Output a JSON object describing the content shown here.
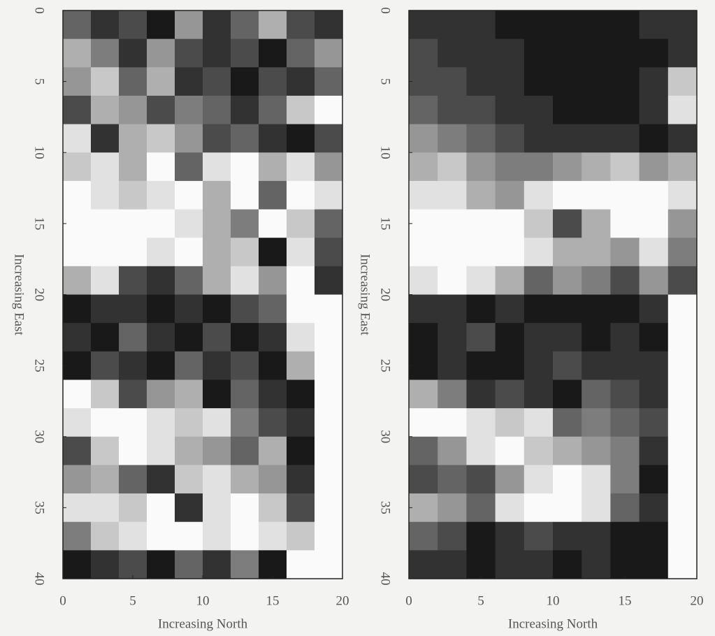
{
  "chart_data": [
    {
      "type": "heatmap",
      "xlabel": "Increasing North",
      "ylabel": "Increasing East",
      "xlim": [
        0,
        20
      ],
      "ylim": [
        0,
        40
      ],
      "xticks": [
        0,
        5,
        10,
        15,
        20
      ],
      "yticks": [
        0,
        5,
        10,
        15,
        20,
        25,
        30,
        35,
        40
      ],
      "y_inverted": true,
      "z": [
        [
          3,
          1,
          2,
          0,
          5,
          1,
          3,
          6,
          2,
          1
        ],
        [
          6,
          4,
          1,
          5,
          2,
          1,
          2,
          0,
          3,
          5
        ],
        [
          5,
          7,
          3,
          6,
          1,
          2,
          0,
          2,
          1,
          3
        ],
        [
          2,
          6,
          5,
          2,
          4,
          3,
          1,
          3,
          7,
          9
        ],
        [
          8,
          1,
          6,
          7,
          5,
          2,
          3,
          1,
          0,
          2
        ],
        [
          7,
          8,
          6,
          9,
          3,
          8,
          9,
          6,
          8,
          5
        ],
        [
          9,
          8,
          7,
          8,
          9,
          6,
          9,
          3,
          9,
          8
        ],
        [
          9,
          9,
          9,
          9,
          8,
          6,
          4,
          9,
          7,
          3
        ],
        [
          9,
          9,
          9,
          8,
          9,
          6,
          7,
          0,
          8,
          2
        ],
        [
          6,
          8,
          2,
          1,
          3,
          6,
          8,
          5,
          9,
          1
        ],
        [
          0,
          1,
          1,
          0,
          1,
          0,
          2,
          3,
          9,
          9
        ],
        [
          1,
          0,
          3,
          1,
          0,
          2,
          0,
          1,
          8,
          9
        ],
        [
          0,
          2,
          1,
          0,
          3,
          1,
          2,
          0,
          6,
          9
        ],
        [
          9,
          7,
          2,
          5,
          6,
          0,
          3,
          1,
          0,
          9
        ],
        [
          8,
          9,
          9,
          8,
          7,
          8,
          4,
          2,
          1,
          9
        ],
        [
          2,
          7,
          9,
          8,
          6,
          5,
          3,
          6,
          0,
          9
        ],
        [
          5,
          6,
          3,
          1,
          7,
          8,
          6,
          5,
          1,
          9
        ],
        [
          8,
          8,
          7,
          9,
          1,
          8,
          9,
          7,
          2,
          9
        ],
        [
          4,
          7,
          8,
          9,
          9,
          8,
          9,
          8,
          7,
          9
        ],
        [
          0,
          1,
          2,
          0,
          3,
          1,
          4,
          0,
          9,
          9
        ]
      ]
    },
    {
      "type": "heatmap",
      "xlabel": "Increasing North",
      "ylabel": "Increasing East",
      "xlim": [
        0,
        20
      ],
      "ylim": [
        0,
        40
      ],
      "xticks": [
        0,
        5,
        10,
        15,
        20
      ],
      "yticks": [
        0,
        5,
        10,
        15,
        20,
        25,
        30,
        35,
        40
      ],
      "y_inverted": true,
      "z": [
        [
          1,
          1,
          1,
          0,
          0,
          0,
          0,
          0,
          1,
          1
        ],
        [
          2,
          1,
          1,
          1,
          0,
          0,
          0,
          0,
          0,
          1
        ],
        [
          2,
          2,
          1,
          1,
          0,
          0,
          0,
          0,
          1,
          7
        ],
        [
          3,
          2,
          2,
          1,
          1,
          0,
          0,
          0,
          1,
          8
        ],
        [
          5,
          4,
          3,
          2,
          1,
          1,
          1,
          1,
          0,
          1
        ],
        [
          6,
          7,
          5,
          4,
          4,
          5,
          6,
          7,
          5,
          6
        ],
        [
          8,
          8,
          6,
          5,
          8,
          9,
          9,
          9,
          9,
          8
        ],
        [
          9,
          9,
          9,
          9,
          7,
          2,
          6,
          9,
          9,
          5
        ],
        [
          9,
          9,
          9,
          9,
          8,
          6,
          6,
          5,
          8,
          4
        ],
        [
          8,
          9,
          8,
          6,
          3,
          5,
          4,
          2,
          5,
          2
        ],
        [
          1,
          1,
          0,
          1,
          0,
          0,
          0,
          0,
          1,
          9
        ],
        [
          0,
          1,
          2,
          0,
          1,
          1,
          0,
          1,
          0,
          9
        ],
        [
          0,
          1,
          0,
          0,
          1,
          2,
          1,
          1,
          1,
          9
        ],
        [
          6,
          4,
          1,
          2,
          1,
          0,
          3,
          2,
          1,
          9
        ],
        [
          9,
          9,
          8,
          7,
          8,
          3,
          4,
          3,
          2,
          9
        ],
        [
          3,
          5,
          8,
          9,
          7,
          6,
          5,
          4,
          1,
          9
        ],
        [
          2,
          3,
          2,
          5,
          8,
          9,
          8,
          4,
          0,
          9
        ],
        [
          6,
          5,
          3,
          8,
          9,
          9,
          8,
          3,
          1,
          9
        ],
        [
          3,
          2,
          0,
          1,
          2,
          1,
          1,
          0,
          0,
          9
        ],
        [
          1,
          1,
          0,
          1,
          1,
          0,
          1,
          0,
          0,
          9
        ]
      ]
    }
  ]
}
